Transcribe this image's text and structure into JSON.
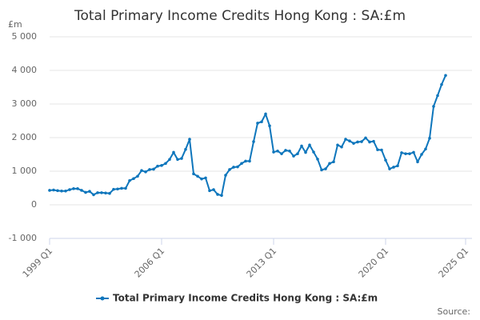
{
  "chart_data": {
    "type": "line",
    "title": "Total Primary Income Credits Hong Kong : SA:£m",
    "y_unit": "£m",
    "source": "Source:",
    "categories": [
      "1999 Q1",
      null,
      null,
      null,
      null,
      null,
      null,
      null,
      null,
      null,
      null,
      null,
      null,
      null,
      null,
      null,
      null,
      null,
      null,
      null,
      null,
      null,
      null,
      null,
      null,
      null,
      null,
      null,
      "2006 Q1",
      null,
      null,
      null,
      null,
      null,
      null,
      null,
      null,
      null,
      null,
      null,
      null,
      null,
      null,
      null,
      null,
      null,
      null,
      null,
      null,
      null,
      null,
      null,
      null,
      null,
      null,
      null,
      "2013 Q1",
      null,
      null,
      null,
      null,
      null,
      null,
      null,
      null,
      null,
      null,
      null,
      null,
      null,
      null,
      null,
      null,
      null,
      null,
      null,
      null,
      null,
      null,
      null,
      null,
      null,
      null,
      null,
      "2020 Q1",
      null,
      null,
      null,
      null,
      null,
      null,
      null,
      null,
      null,
      null,
      null,
      null,
      null,
      null,
      null,
      null,
      null,
      null,
      null,
      "2025 Q1"
    ],
    "series": [
      {
        "name": "Total Primary Income Credits Hong Kong : SA:£m",
        "color": "#0e76bc",
        "values": [
          430,
          440,
          420,
          410,
          410,
          450,
          480,
          480,
          430,
          370,
          400,
          300,
          360,
          360,
          350,
          340,
          460,
          470,
          490,
          490,
          720,
          780,
          850,
          1020,
          980,
          1050,
          1060,
          1150,
          1170,
          1230,
          1350,
          1560,
          1350,
          1380,
          1650,
          1950,
          920,
          850,
          770,
          800,
          420,
          450,
          310,
          280,
          880,
          1050,
          1120,
          1130,
          1230,
          1300,
          1300,
          1880,
          2430,
          2470,
          2700,
          2350,
          1570,
          1600,
          1520,
          1620,
          1600,
          1450,
          1520,
          1750,
          1560,
          1780,
          1570,
          1360,
          1040,
          1070,
          1230,
          1280,
          1780,
          1720,
          1950,
          1900,
          1830,
          1870,
          1880,
          1990,
          1870,
          1890,
          1640,
          1630,
          1330,
          1070,
          1120,
          1160,
          1550,
          1520,
          1520,
          1560,
          1280,
          1500,
          1660,
          1980,
          2930,
          3250,
          3580,
          3850,
          null,
          null,
          null,
          null,
          null
        ]
      }
    ],
    "ylim": [
      -1000,
      5000
    ],
    "yticks": [
      {
        "value": -1000,
        "label": "-1 000"
      },
      0,
      {
        "value": 1000,
        "label": "1 000"
      },
      {
        "value": 2000,
        "label": "2 000"
      },
      {
        "value": 3000,
        "label": "3 000"
      },
      {
        "value": 4000,
        "label": "4 000"
      },
      {
        "value": 5000,
        "label": "5 000"
      }
    ],
    "grid": true
  }
}
